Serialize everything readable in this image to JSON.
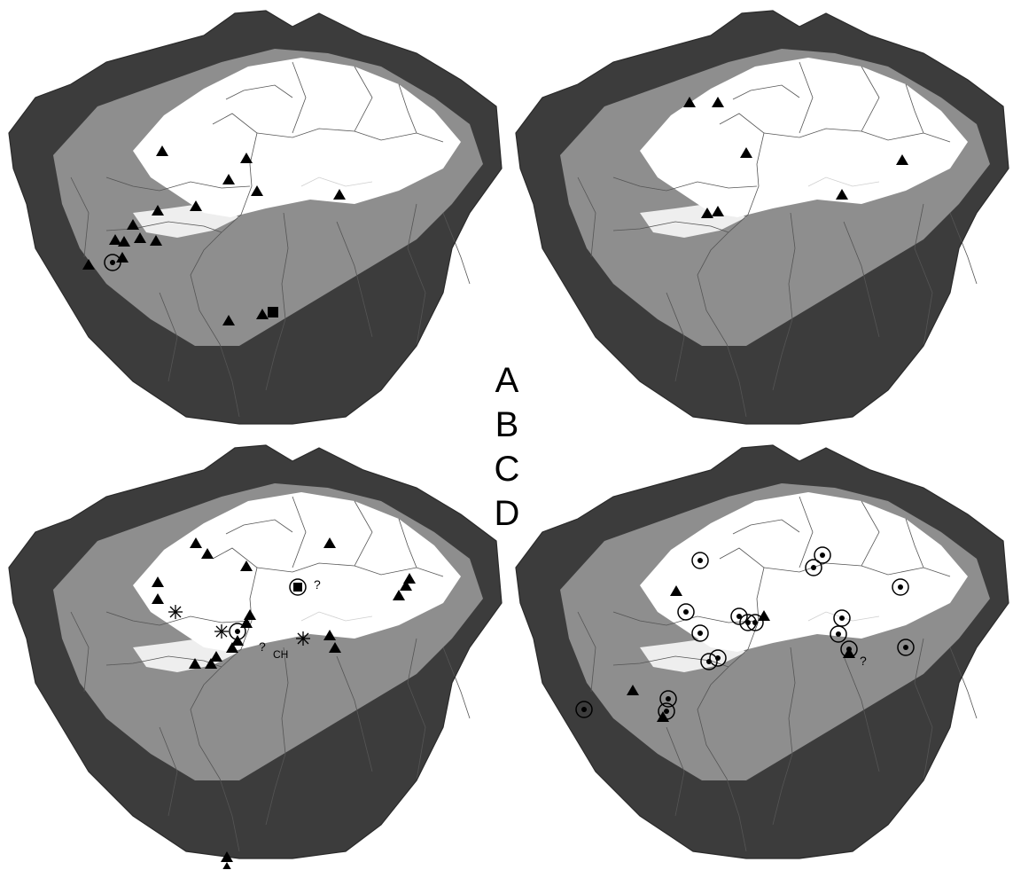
{
  "panel_letters": [
    "A",
    "B",
    "C",
    "D"
  ],
  "annotations": {
    "query_mark": "?",
    "ch_label": "CH"
  },
  "zone_colors": {
    "low": "#ffffff",
    "mid": "#8e8e8e",
    "high": "#3c3c3c"
  },
  "symbol_legend": {
    "triangle": "filled-triangle-marker",
    "circle": "circled-dot-marker",
    "square": "filled-square-marker",
    "asterisk": "asterisk-marker"
  }
}
